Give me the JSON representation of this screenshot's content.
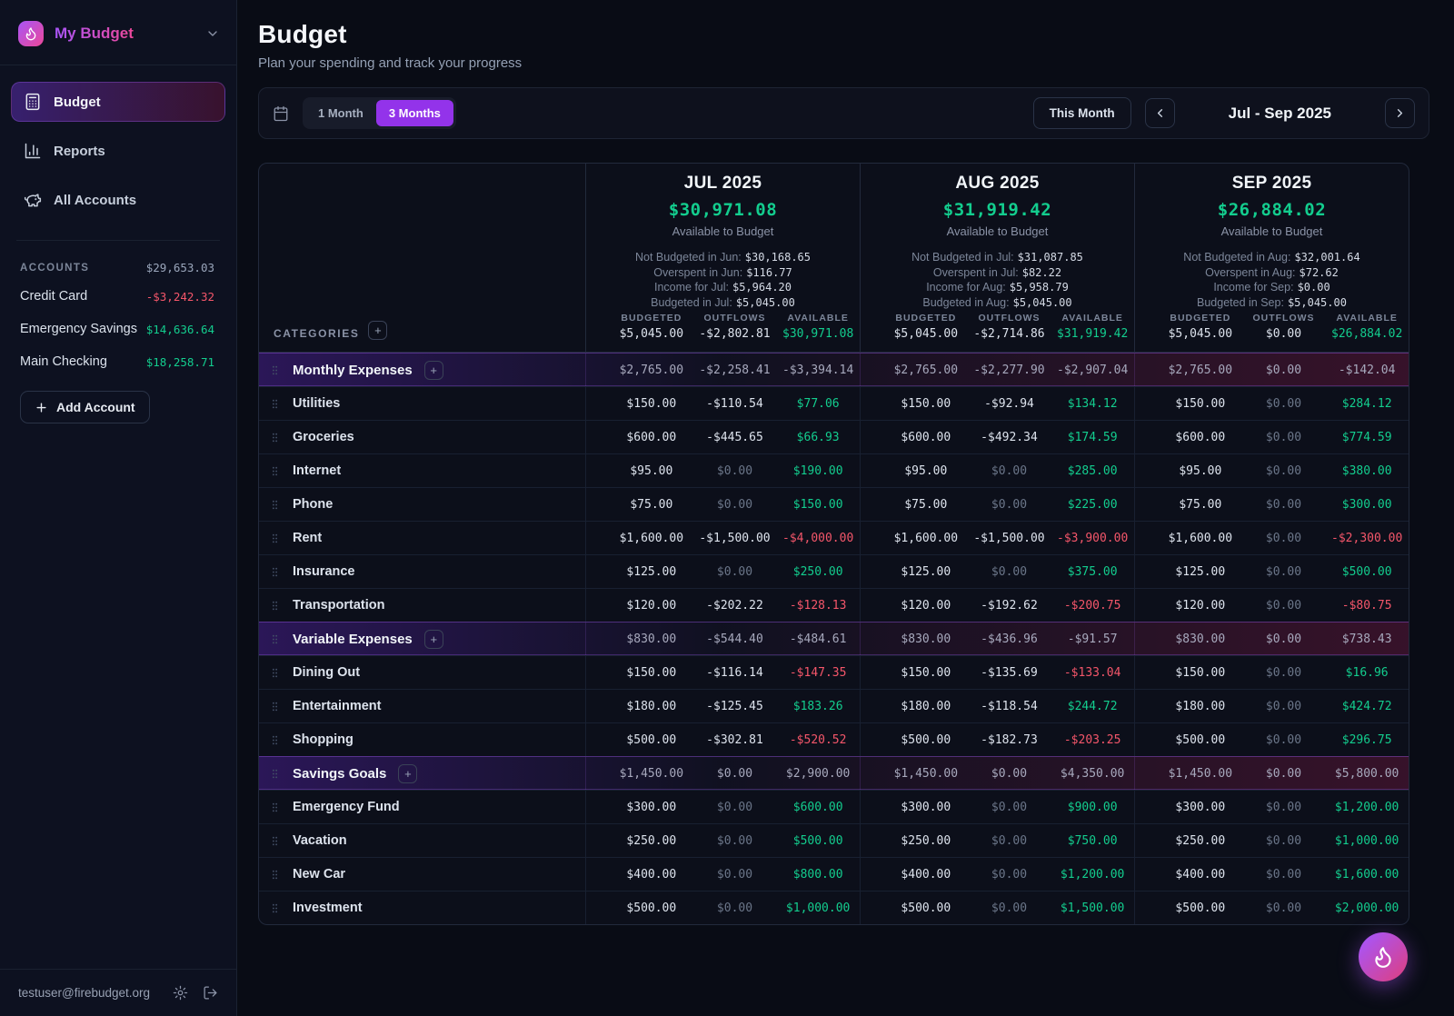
{
  "theme": {
    "accent": "#9333ea",
    "positive": "#13cd8e",
    "negative": "#f4566a"
  },
  "sidebar": {
    "app_name": "My Budget",
    "nav": [
      {
        "label": "Budget"
      },
      {
        "label": "Reports"
      },
      {
        "label": "All Accounts"
      }
    ],
    "accounts_label": "ACCOUNTS",
    "accounts_total": "$29,653.03",
    "accounts": [
      {
        "name": "Credit Card",
        "balance": "-$3,242.32"
      },
      {
        "name": "Emergency Savings",
        "balance": "$14,636.64"
      },
      {
        "name": "Main Checking",
        "balance": "$18,258.71"
      }
    ],
    "add_account_label": "Add Account",
    "footer_email": "testuser@firebudget.org"
  },
  "header": {
    "title": "Budget",
    "subtitle": "Plan your spending and track your progress"
  },
  "toolbar": {
    "range_options": [
      {
        "label": "1 Month",
        "active": false
      },
      {
        "label": "3 Months",
        "active": true
      }
    ],
    "this_month_label": "This Month",
    "period_label": "Jul - Sep 2025"
  },
  "table": {
    "categories_label": "CATEGORIES",
    "value_columns": [
      "BUDGETED",
      "OUTFLOWS",
      "AVAILABLE"
    ],
    "months": [
      {
        "name": "JUL 2025",
        "available": "$30,971.08",
        "caption": "Available to Budget",
        "details": [
          {
            "label": "Not Budgeted in Jun:",
            "value": "$30,168.65"
          },
          {
            "label": "Overspent in Jun:",
            "value": "$116.77"
          },
          {
            "label": "Income for Jul:",
            "value": "$5,964.20"
          },
          {
            "label": "Budgeted in Jul:",
            "value": "$5,045.00"
          }
        ],
        "totals": [
          "$5,045.00",
          "-$2,802.81",
          "$30,971.08"
        ]
      },
      {
        "name": "AUG 2025",
        "available": "$31,919.42",
        "caption": "Available to Budget",
        "details": [
          {
            "label": "Not Budgeted in Jul:",
            "value": "$31,087.85"
          },
          {
            "label": "Overspent in Jul:",
            "value": "$82.22"
          },
          {
            "label": "Income for Aug:",
            "value": "$5,958.79"
          },
          {
            "label": "Budgeted in Aug:",
            "value": "$5,045.00"
          }
        ],
        "totals": [
          "$5,045.00",
          "-$2,714.86",
          "$31,919.42"
        ]
      },
      {
        "name": "SEP 2025",
        "available": "$26,884.02",
        "caption": "Available to Budget",
        "details": [
          {
            "label": "Not Budgeted in Aug:",
            "value": "$32,001.64"
          },
          {
            "label": "Overspent in Aug:",
            "value": "$72.62"
          },
          {
            "label": "Income for Sep:",
            "value": "$0.00"
          },
          {
            "label": "Budgeted in Sep:",
            "value": "$5,045.00"
          }
        ],
        "totals": [
          "$5,045.00",
          "$0.00",
          "$26,884.02"
        ]
      }
    ],
    "rows": [
      {
        "name": "Monthly Expenses",
        "group": true,
        "cells": [
          [
            "$2,765.00",
            "-$2,258.41",
            "-$3,394.14"
          ],
          [
            "$2,765.00",
            "-$2,277.90",
            "-$2,907.04"
          ],
          [
            "$2,765.00",
            "$0.00",
            "-$142.04"
          ]
        ]
      },
      {
        "name": "Utilities",
        "group": false,
        "cells": [
          [
            "$150.00",
            "-$110.54",
            "$77.06"
          ],
          [
            "$150.00",
            "-$92.94",
            "$134.12"
          ],
          [
            "$150.00",
            "$0.00",
            "$284.12"
          ]
        ]
      },
      {
        "name": "Groceries",
        "group": false,
        "cells": [
          [
            "$600.00",
            "-$445.65",
            "$66.93"
          ],
          [
            "$600.00",
            "-$492.34",
            "$174.59"
          ],
          [
            "$600.00",
            "$0.00",
            "$774.59"
          ]
        ]
      },
      {
        "name": "Internet",
        "group": false,
        "cells": [
          [
            "$95.00",
            "$0.00",
            "$190.00"
          ],
          [
            "$95.00",
            "$0.00",
            "$285.00"
          ],
          [
            "$95.00",
            "$0.00",
            "$380.00"
          ]
        ]
      },
      {
        "name": "Phone",
        "group": false,
        "cells": [
          [
            "$75.00",
            "$0.00",
            "$150.00"
          ],
          [
            "$75.00",
            "$0.00",
            "$225.00"
          ],
          [
            "$75.00",
            "$0.00",
            "$300.00"
          ]
        ]
      },
      {
        "name": "Rent",
        "group": false,
        "cells": [
          [
            "$1,600.00",
            "-$1,500.00",
            "-$4,000.00"
          ],
          [
            "$1,600.00",
            "-$1,500.00",
            "-$3,900.00"
          ],
          [
            "$1,600.00",
            "$0.00",
            "-$2,300.00"
          ]
        ]
      },
      {
        "name": "Insurance",
        "group": false,
        "cells": [
          [
            "$125.00",
            "$0.00",
            "$250.00"
          ],
          [
            "$125.00",
            "$0.00",
            "$375.00"
          ],
          [
            "$125.00",
            "$0.00",
            "$500.00"
          ]
        ]
      },
      {
        "name": "Transportation",
        "group": false,
        "cells": [
          [
            "$120.00",
            "-$202.22",
            "-$128.13"
          ],
          [
            "$120.00",
            "-$192.62",
            "-$200.75"
          ],
          [
            "$120.00",
            "$0.00",
            "-$80.75"
          ]
        ]
      },
      {
        "name": "Variable Expenses",
        "group": true,
        "cells": [
          [
            "$830.00",
            "-$544.40",
            "-$484.61"
          ],
          [
            "$830.00",
            "-$436.96",
            "-$91.57"
          ],
          [
            "$830.00",
            "$0.00",
            "$738.43"
          ]
        ]
      },
      {
        "name": "Dining Out",
        "group": false,
        "cells": [
          [
            "$150.00",
            "-$116.14",
            "-$147.35"
          ],
          [
            "$150.00",
            "-$135.69",
            "-$133.04"
          ],
          [
            "$150.00",
            "$0.00",
            "$16.96"
          ]
        ]
      },
      {
        "name": "Entertainment",
        "group": false,
        "cells": [
          [
            "$180.00",
            "-$125.45",
            "$183.26"
          ],
          [
            "$180.00",
            "-$118.54",
            "$244.72"
          ],
          [
            "$180.00",
            "$0.00",
            "$424.72"
          ]
        ]
      },
      {
        "name": "Shopping",
        "group": false,
        "cells": [
          [
            "$500.00",
            "-$302.81",
            "-$520.52"
          ],
          [
            "$500.00",
            "-$182.73",
            "-$203.25"
          ],
          [
            "$500.00",
            "$0.00",
            "$296.75"
          ]
        ]
      },
      {
        "name": "Savings Goals",
        "group": true,
        "cells": [
          [
            "$1,450.00",
            "$0.00",
            "$2,900.00"
          ],
          [
            "$1,450.00",
            "$0.00",
            "$4,350.00"
          ],
          [
            "$1,450.00",
            "$0.00",
            "$5,800.00"
          ]
        ]
      },
      {
        "name": "Emergency Fund",
        "group": false,
        "cells": [
          [
            "$300.00",
            "$0.00",
            "$600.00"
          ],
          [
            "$300.00",
            "$0.00",
            "$900.00"
          ],
          [
            "$300.00",
            "$0.00",
            "$1,200.00"
          ]
        ]
      },
      {
        "name": "Vacation",
        "group": false,
        "cells": [
          [
            "$250.00",
            "$0.00",
            "$500.00"
          ],
          [
            "$250.00",
            "$0.00",
            "$750.00"
          ],
          [
            "$250.00",
            "$0.00",
            "$1,000.00"
          ]
        ]
      },
      {
        "name": "New Car",
        "group": false,
        "cells": [
          [
            "$400.00",
            "$0.00",
            "$800.00"
          ],
          [
            "$400.00",
            "$0.00",
            "$1,200.00"
          ],
          [
            "$400.00",
            "$0.00",
            "$1,600.00"
          ]
        ]
      },
      {
        "name": "Investment",
        "group": false,
        "cells": [
          [
            "$500.00",
            "$0.00",
            "$1,000.00"
          ],
          [
            "$500.00",
            "$0.00",
            "$1,500.00"
          ],
          [
            "$500.00",
            "$0.00",
            "$2,000.00"
          ]
        ]
      }
    ]
  }
}
